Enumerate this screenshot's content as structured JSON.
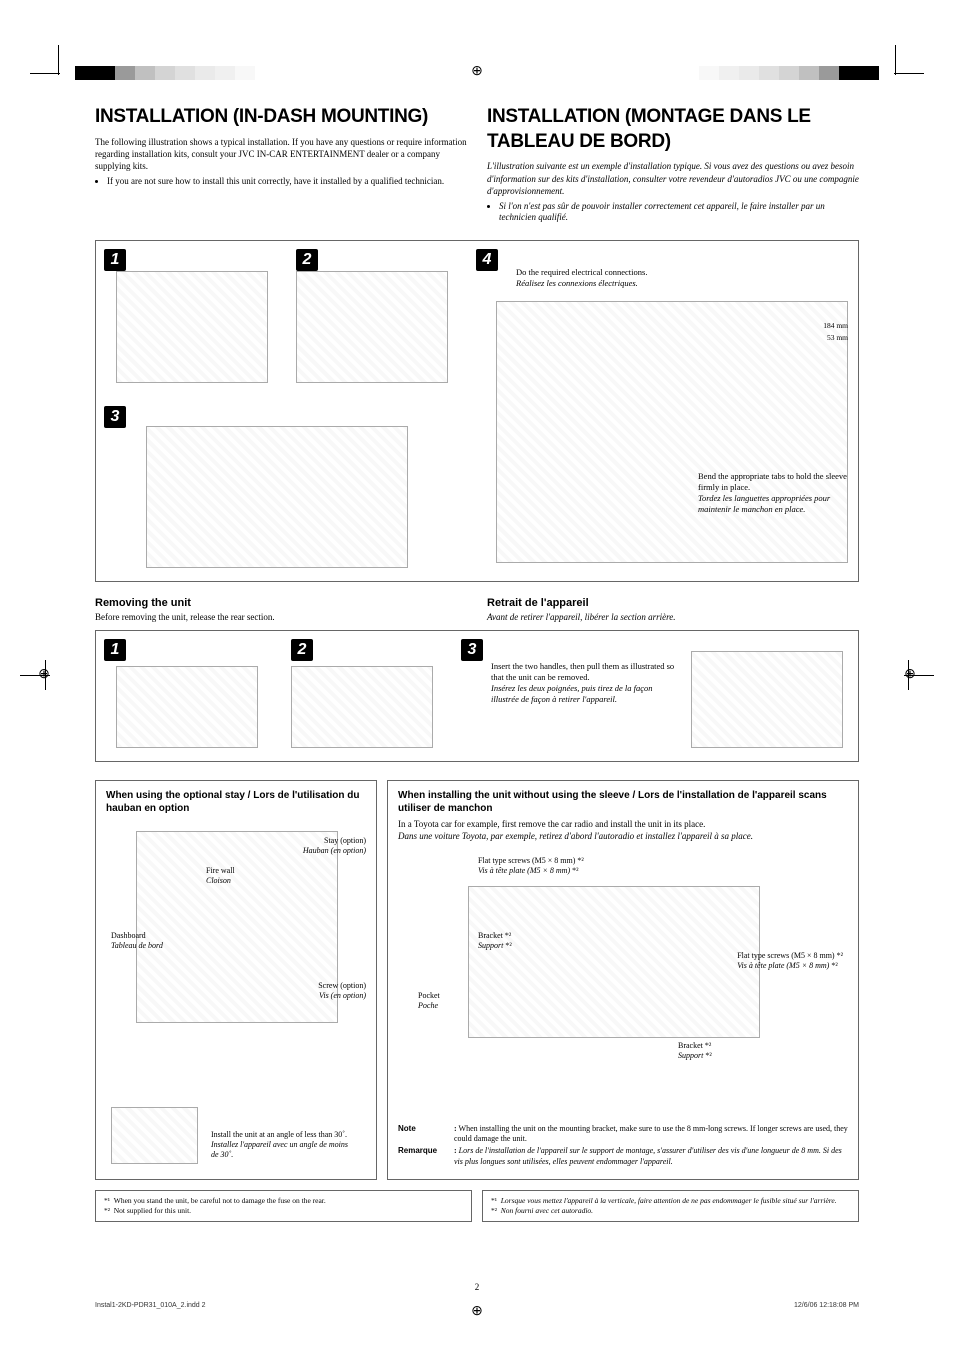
{
  "colorbar_left": [
    "#000000",
    "#000000",
    "#9a9a9a",
    "#c0c0c0",
    "#d4d4d4",
    "#e0e0e0",
    "#eaeaea",
    "#f0f0f0",
    "#f8f8f8"
  ],
  "colorbar_right": [
    "#f8f8f8",
    "#f0f0f0",
    "#eaeaea",
    "#e0e0e0",
    "#d4d4d4",
    "#c0c0c0",
    "#9a9a9a",
    "#000000",
    "#000000"
  ],
  "left": {
    "title": "INSTALLATION (IN-DASH MOUNTING)",
    "intro": "The following illustration shows a typical installation. If you have any questions or require information regarding installation kits, consult your JVC IN-CAR ENTERTAINMENT dealer or a company supplying kits.",
    "bullet": "If you are not sure how to install this unit correctly, have it installed by a qualified technician."
  },
  "right": {
    "title": "INSTALLATION (MONTAGE DANS LE TABLEAU DE BORD)",
    "intro": "L'illustration suivante est un exemple d'installation typique. Si vous avez des questions ou avez besoin d'information sur des kits d'installation, consulter votre revendeur d'autoradios JVC ou une compagnie d'approvisionnement.",
    "bullet": "Si l'on n'est pas sûr de pouvoir installer correctement cet appareil, le faire installer par un technicien qualifié."
  },
  "steps": {
    "s1": "1",
    "s2": "2",
    "s3": "3",
    "s4": "4",
    "step4_text_en": "Do the required electrical connections.",
    "step4_text_fr": "Réalisez les connexions électriques.",
    "bend_en": "Bend the appropriate tabs to hold the sleeve firmly in place.",
    "bend_fr": "Tordez les languettes appropriées pour maintenir le manchon en place.",
    "dim1": "184 mm",
    "dim2": "53 mm"
  },
  "removing": {
    "title_en": "Removing the unit",
    "sub_en": "Before removing the unit, release the rear section.",
    "title_fr": "Retrait de l'appareil",
    "sub_fr": "Avant de retirer l'appareil, libérer la section arrière.",
    "step3_en": "Insert the two handles, then pull them as illustrated so that the unit can be removed.",
    "step3_fr": "Insérez les deux poignées, puis tirez de la façon illustrée de façon à retirer l'appareil."
  },
  "stay_box": {
    "title": "When using the optional stay / Lors de l'utilisation du hauban en option",
    "stay_en": "Stay (option)",
    "stay_fr": "Hauban (en option)",
    "firewall_en": "Fire wall",
    "firewall_fr": "Cloison",
    "dash_en": "Dashboard",
    "dash_fr": "Tableau de bord",
    "screw_en": "Screw (option)",
    "screw_fr": "Vis (en option)",
    "angle_en": "Install the unit at an angle of less than 30˚.",
    "angle_fr": "Installez l'appareil avec un angle de moins de 30˚."
  },
  "sleeve_box": {
    "title": "When installing the unit without using the sleeve / Lors de l'installation de l'appareil scans utiliser de manchon",
    "intro_en": "In a Toyota car for example, first remove the car radio and install the unit in its place.",
    "intro_fr": "Dans une voiture Toyota, par exemple, retirez d'abord l'autoradio et installez l'appareil à sa place.",
    "flat_en": "Flat type screws (M5 × 8 mm)",
    "flat_fr": "Vis à tête plate (M5 × 8 mm)",
    "bracket_en": "Bracket",
    "bracket_fr": "Support",
    "pocket_en": "Pocket",
    "pocket_fr": "Poche",
    "star2": "*²",
    "note_label": "Note",
    "note_en": "When installing the unit on the mounting bracket, make sure to use the 8 mm-long screws. If longer screws are used, they could damage the unit.",
    "remarque_label": "Remarque",
    "remarque_fr": "Lors de l'installation de l'appareil sur le support de montage, s'assurer d'utiliser des vis d'une longueur de 8 mm. Si des vis plus longues sont utilisées, elles peuvent endommager l'appareil."
  },
  "footnotes": {
    "en1": "When you stand the unit, be careful not to damage the fuse on the rear.",
    "en2": "Not supplied for this unit.",
    "fr1": "Lorsque vous mettez l'appareil à la verticale, faire attention de ne pas endommager le fusible situé sur l'arrière.",
    "fr2": "Non fourni avec cet autoradio.",
    "star1": "*¹",
    "star2": "*²"
  },
  "footer": {
    "page": "2",
    "left": "Instal1-2KD-PDR31_010A_2.indd   2",
    "right": "12/6/06   12:18:08 PM"
  }
}
